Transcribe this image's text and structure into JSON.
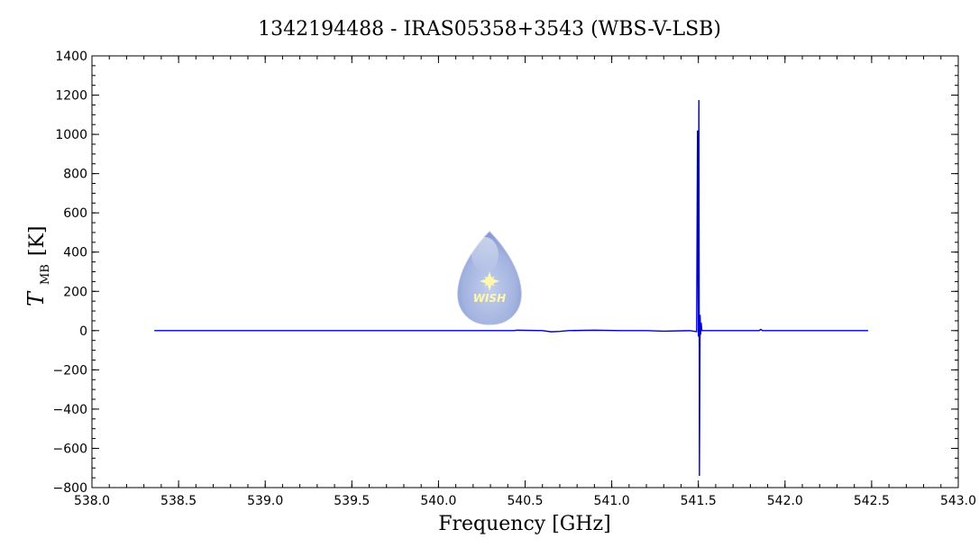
{
  "chart_data": {
    "type": "line",
    "title": "1342194488 - IRAS05358+3543 (WBS-V-LSB)",
    "xlabel": "Frequency [GHz]",
    "ylabel_main": "T",
    "ylabel_sub": "MB",
    "ylabel_unit": "[K]",
    "xlim": [
      538.0,
      543.0
    ],
    "ylim": [
      -800,
      1400
    ],
    "xticks": [
      "538.0",
      "538.5",
      "539.0",
      "539.5",
      "540.0",
      "540.5",
      "541.0",
      "541.5",
      "542.0",
      "542.5",
      "543.0"
    ],
    "yticks": [
      "−800",
      "−600",
      "−400",
      "−200",
      "0",
      "200",
      "400",
      "600",
      "800",
      "1000",
      "1200",
      "1400"
    ],
    "grid": false,
    "series": [
      {
        "color": "#0000cc",
        "x": [
          538.36,
          540.44,
          540.45,
          540.6,
          540.65,
          540.7,
          540.75,
          540.9,
          541.05,
          541.2,
          541.3,
          541.45,
          541.49,
          541.495,
          541.5,
          541.503,
          541.506,
          541.51,
          541.513,
          541.516,
          541.52,
          541.55,
          541.85,
          541.86,
          541.87,
          542.48
        ],
        "y": [
          0,
          0,
          2,
          0,
          -6,
          -4,
          0,
          2,
          0,
          0,
          -3,
          0,
          -5,
          1020,
          -30,
          1175,
          -740,
          80,
          -20,
          40,
          0,
          0,
          0,
          6,
          0,
          0
        ]
      }
    ],
    "logo": {
      "text": "WISH",
      "colors": {
        "drop_top": "#eef0fa",
        "drop_bottom": "#7f94cf",
        "star": "#fff7a0"
      }
    }
  }
}
